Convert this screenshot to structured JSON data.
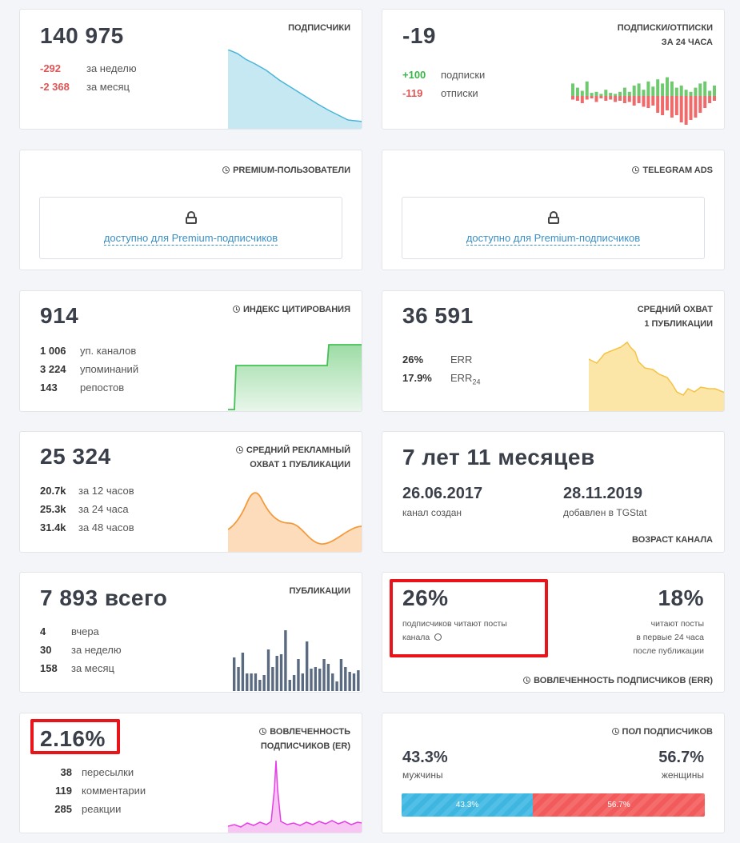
{
  "subscribers": {
    "value": "140 975",
    "title": "ПОДПИСЧИКИ",
    "week_value": "-292",
    "week_label": "за неделю",
    "month_value": "-2 368",
    "month_label": "за месяц"
  },
  "daily": {
    "value": "-19",
    "title_line1": "ПОДПИСКИ/ОТПИСКИ",
    "title_line2": "ЗА 24 ЧАСА",
    "subs_value": "+100",
    "subs_label": "подписки",
    "unsubs_value": "-119",
    "unsubs_label": "отписки"
  },
  "premium": {
    "title": "PREMIUM-ПОЛЬЗОВАТЕЛИ",
    "link": "доступно для Premium-подписчиков"
  },
  "ads": {
    "title": "TELEGRAM ADS",
    "link": "доступно для Premium-подписчиков"
  },
  "citation": {
    "value": "914",
    "title": "ИНДЕКС ЦИТИРОВАНИЯ",
    "rows": [
      {
        "n": "1 006",
        "l": "уп. каналов"
      },
      {
        "n": "3 224",
        "l": "упоминаний"
      },
      {
        "n": "143",
        "l": "репостов"
      }
    ]
  },
  "reach": {
    "value": "36 591",
    "title_line1": "СРЕДНИЙ ОХВАТ",
    "title_line2": "1 ПУБЛИКАЦИИ",
    "err_value": "26%",
    "err_label": "ERR",
    "err24_value": "17.9%",
    "err24_label": "ERR",
    "err24_sub": "24"
  },
  "ad_reach": {
    "value": "25 324",
    "title_line1": "СРЕДНИЙ РЕКЛАМНЫЙ",
    "title_line2": "ОХВАТ 1 ПУБЛИКАЦИИ",
    "rows": [
      {
        "n": "20.7k",
        "l": "за 12 часов"
      },
      {
        "n": "25.3k",
        "l": "за 24 часа"
      },
      {
        "n": "31.4k",
        "l": "за 48 часов"
      }
    ]
  },
  "age": {
    "value": "7 лет 11 месяцев",
    "created_date": "26.06.2017",
    "created_label": "канал создан",
    "added_date": "28.11.2019",
    "added_label": "добавлен в TGStat",
    "title": "ВОЗРАСТ КАНАЛА"
  },
  "posts": {
    "value": "7 893 всего",
    "title": "ПУБЛИКАЦИИ",
    "rows": [
      {
        "n": "4",
        "l": "вчера"
      },
      {
        "n": "30",
        "l": "за неделю"
      },
      {
        "n": "158",
        "l": "за месяц"
      }
    ]
  },
  "err": {
    "value": "26%",
    "label_line1": "подписчиков читают посты",
    "label_line2": "канала",
    "value2": "18%",
    "label2_line1": "читают посты",
    "label2_line2": "в первые 24 часа",
    "label2_line3": "после публикации",
    "title": "ВОВЛЕЧЕННОСТЬ ПОДПИСЧИКОВ (ERR)"
  },
  "er": {
    "value": "2.16%",
    "title_line1": "ВОВЛЕЧЕННОСТЬ",
    "title_line2": "ПОДПИСЧИКОВ (ER)",
    "rows": [
      {
        "n": "38",
        "l": "пересылки"
      },
      {
        "n": "119",
        "l": "комментарии"
      },
      {
        "n": "285",
        "l": "реакции"
      }
    ]
  },
  "gender": {
    "title": "ПОЛ ПОДПИСЧИКОВ",
    "male_value": "43.3%",
    "male_label": "мужчины",
    "female_value": "56.7%",
    "female_label": "женщины",
    "male_bar": "43.3%",
    "female_bar": "56.7%",
    "male_share": 0.433
  },
  "colors": {
    "subscribers": "#4bb4d8",
    "positive": "#6fc96f",
    "negative": "#ef6b6b",
    "citation": "#44c056",
    "reach": "#f6c244",
    "ad_reach": "#f59a3c",
    "posts": "#5a6a80",
    "er": "#e63ee6",
    "male": "#3fb6e0",
    "female": "#f25b5b",
    "highlight": "#e8141a"
  }
}
